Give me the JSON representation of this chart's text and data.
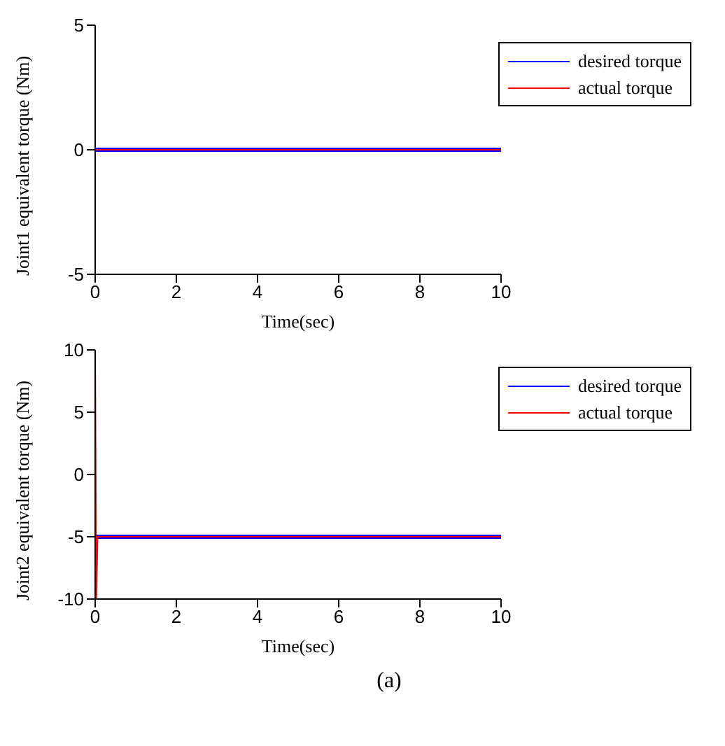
{
  "chart_data": [
    {
      "type": "line",
      "xlabel": "Time(sec)",
      "ylabel": "Joint1 equivalent torque (Nm)",
      "xlim": [
        0,
        10
      ],
      "xticks": [
        0,
        2,
        4,
        6,
        8,
        10
      ],
      "ylim": [
        -5,
        5
      ],
      "yticks": [
        -5,
        0,
        5
      ],
      "legend": "top right",
      "grid": false,
      "series": [
        {
          "name": "desired torque",
          "color": "#0000ff",
          "x": [
            0,
            10
          ],
          "values": [
            0,
            0
          ]
        },
        {
          "name": "actual torque",
          "color": "#ff0000",
          "x": [
            0,
            10
          ],
          "values": [
            0,
            0
          ]
        }
      ]
    },
    {
      "type": "line",
      "xlabel": "Time(sec)",
      "ylabel": "Joint2 equivalent torque (Nm)",
      "xlim": [
        0,
        10
      ],
      "xticks": [
        0,
        2,
        4,
        6,
        8,
        10
      ],
      "ylim": [
        -10,
        10
      ],
      "yticks": [
        -10,
        -5,
        0,
        5,
        10
      ],
      "legend": "top right",
      "grid": false,
      "annotations": [
        "(a)"
      ],
      "series": [
        {
          "name": "desired torque",
          "color": "#0000ff",
          "x": [
            0,
            10
          ],
          "values": [
            -5,
            -5
          ]
        },
        {
          "name": "actual torque",
          "color": "#ff0000",
          "x": [
            0,
            0.03,
            0.06,
            10
          ],
          "values": [
            10,
            -10,
            -5,
            -5
          ]
        }
      ]
    }
  ]
}
